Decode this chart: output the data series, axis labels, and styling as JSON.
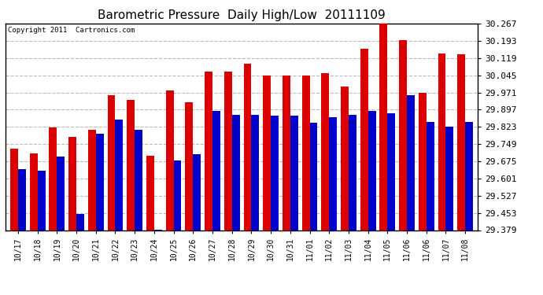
{
  "title": "Barometric Pressure  Daily High/Low  20111109",
  "copyright": "Copyright 2011  Cartronics.com",
  "categories": [
    "10/17",
    "10/18",
    "10/19",
    "10/20",
    "10/21",
    "10/22",
    "10/23",
    "10/24",
    "10/25",
    "10/26",
    "10/27",
    "10/28",
    "10/29",
    "10/30",
    "10/31",
    "11/01",
    "11/02",
    "11/03",
    "11/04",
    "11/05",
    "11/06",
    "11/06",
    "11/07",
    "11/08"
  ],
  "highs": [
    29.73,
    29.71,
    29.82,
    29.78,
    29.81,
    29.96,
    29.94,
    29.7,
    29.98,
    29.93,
    30.06,
    30.06,
    30.095,
    30.045,
    30.045,
    30.045,
    30.055,
    29.995,
    30.16,
    30.267,
    30.195,
    29.97,
    30.14,
    30.135
  ],
  "lows": [
    29.64,
    29.635,
    29.695,
    29.45,
    29.795,
    29.855,
    29.81,
    29.38,
    29.68,
    29.705,
    29.89,
    29.875,
    29.875,
    29.87,
    29.87,
    29.84,
    29.865,
    29.875,
    29.89,
    29.88,
    29.96,
    29.845,
    29.825,
    29.845
  ],
  "ymin": 29.379,
  "ymax": 30.267,
  "yticks": [
    29.379,
    29.453,
    29.527,
    29.601,
    29.675,
    29.749,
    29.823,
    29.897,
    29.971,
    30.045,
    30.119,
    30.193,
    30.267
  ],
  "high_color": "#dd0000",
  "low_color": "#0000cc",
  "bg_color": "#ffffff",
  "grid_color": "#bbbbbb",
  "title_fontsize": 11,
  "bar_width": 0.4,
  "fig_width": 6.9,
  "fig_height": 3.75
}
